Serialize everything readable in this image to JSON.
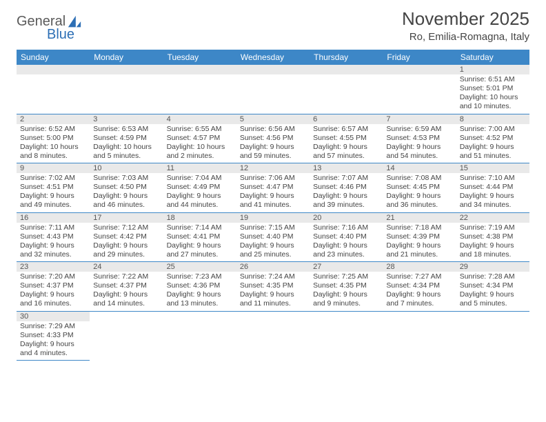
{
  "logo": {
    "general": "General",
    "blue": "Blue"
  },
  "title": "November 2025",
  "location": "Ro, Emilia-Romagna, Italy",
  "colors": {
    "header_bg": "#3d87c7",
    "header_text": "#ffffff",
    "daynum_bg": "#e9e9e9",
    "row_divider": "#3d87c7",
    "body_text": "#444444"
  },
  "day_names": [
    "Sunday",
    "Monday",
    "Tuesday",
    "Wednesday",
    "Thursday",
    "Friday",
    "Saturday"
  ],
  "cells": [
    {
      "blank": true
    },
    {
      "blank": true
    },
    {
      "blank": true
    },
    {
      "blank": true
    },
    {
      "blank": true
    },
    {
      "blank": true
    },
    {
      "day": "1",
      "sunrise": "Sunrise: 6:51 AM",
      "sunset": "Sunset: 5:01 PM",
      "daylight1": "Daylight: 10 hours",
      "daylight2": "and 10 minutes."
    },
    {
      "day": "2",
      "sunrise": "Sunrise: 6:52 AM",
      "sunset": "Sunset: 5:00 PM",
      "daylight1": "Daylight: 10 hours",
      "daylight2": "and 8 minutes."
    },
    {
      "day": "3",
      "sunrise": "Sunrise: 6:53 AM",
      "sunset": "Sunset: 4:59 PM",
      "daylight1": "Daylight: 10 hours",
      "daylight2": "and 5 minutes."
    },
    {
      "day": "4",
      "sunrise": "Sunrise: 6:55 AM",
      "sunset": "Sunset: 4:57 PM",
      "daylight1": "Daylight: 10 hours",
      "daylight2": "and 2 minutes."
    },
    {
      "day": "5",
      "sunrise": "Sunrise: 6:56 AM",
      "sunset": "Sunset: 4:56 PM",
      "daylight1": "Daylight: 9 hours",
      "daylight2": "and 59 minutes."
    },
    {
      "day": "6",
      "sunrise": "Sunrise: 6:57 AM",
      "sunset": "Sunset: 4:55 PM",
      "daylight1": "Daylight: 9 hours",
      "daylight2": "and 57 minutes."
    },
    {
      "day": "7",
      "sunrise": "Sunrise: 6:59 AM",
      "sunset": "Sunset: 4:53 PM",
      "daylight1": "Daylight: 9 hours",
      "daylight2": "and 54 minutes."
    },
    {
      "day": "8",
      "sunrise": "Sunrise: 7:00 AM",
      "sunset": "Sunset: 4:52 PM",
      "daylight1": "Daylight: 9 hours",
      "daylight2": "and 51 minutes."
    },
    {
      "day": "9",
      "sunrise": "Sunrise: 7:02 AM",
      "sunset": "Sunset: 4:51 PM",
      "daylight1": "Daylight: 9 hours",
      "daylight2": "and 49 minutes."
    },
    {
      "day": "10",
      "sunrise": "Sunrise: 7:03 AM",
      "sunset": "Sunset: 4:50 PM",
      "daylight1": "Daylight: 9 hours",
      "daylight2": "and 46 minutes."
    },
    {
      "day": "11",
      "sunrise": "Sunrise: 7:04 AM",
      "sunset": "Sunset: 4:49 PM",
      "daylight1": "Daylight: 9 hours",
      "daylight2": "and 44 minutes."
    },
    {
      "day": "12",
      "sunrise": "Sunrise: 7:06 AM",
      "sunset": "Sunset: 4:47 PM",
      "daylight1": "Daylight: 9 hours",
      "daylight2": "and 41 minutes."
    },
    {
      "day": "13",
      "sunrise": "Sunrise: 7:07 AM",
      "sunset": "Sunset: 4:46 PM",
      "daylight1": "Daylight: 9 hours",
      "daylight2": "and 39 minutes."
    },
    {
      "day": "14",
      "sunrise": "Sunrise: 7:08 AM",
      "sunset": "Sunset: 4:45 PM",
      "daylight1": "Daylight: 9 hours",
      "daylight2": "and 36 minutes."
    },
    {
      "day": "15",
      "sunrise": "Sunrise: 7:10 AM",
      "sunset": "Sunset: 4:44 PM",
      "daylight1": "Daylight: 9 hours",
      "daylight2": "and 34 minutes."
    },
    {
      "day": "16",
      "sunrise": "Sunrise: 7:11 AM",
      "sunset": "Sunset: 4:43 PM",
      "daylight1": "Daylight: 9 hours",
      "daylight2": "and 32 minutes."
    },
    {
      "day": "17",
      "sunrise": "Sunrise: 7:12 AM",
      "sunset": "Sunset: 4:42 PM",
      "daylight1": "Daylight: 9 hours",
      "daylight2": "and 29 minutes."
    },
    {
      "day": "18",
      "sunrise": "Sunrise: 7:14 AM",
      "sunset": "Sunset: 4:41 PM",
      "daylight1": "Daylight: 9 hours",
      "daylight2": "and 27 minutes."
    },
    {
      "day": "19",
      "sunrise": "Sunrise: 7:15 AM",
      "sunset": "Sunset: 4:40 PM",
      "daylight1": "Daylight: 9 hours",
      "daylight2": "and 25 minutes."
    },
    {
      "day": "20",
      "sunrise": "Sunrise: 7:16 AM",
      "sunset": "Sunset: 4:40 PM",
      "daylight1": "Daylight: 9 hours",
      "daylight2": "and 23 minutes."
    },
    {
      "day": "21",
      "sunrise": "Sunrise: 7:18 AM",
      "sunset": "Sunset: 4:39 PM",
      "daylight1": "Daylight: 9 hours",
      "daylight2": "and 21 minutes."
    },
    {
      "day": "22",
      "sunrise": "Sunrise: 7:19 AM",
      "sunset": "Sunset: 4:38 PM",
      "daylight1": "Daylight: 9 hours",
      "daylight2": "and 18 minutes."
    },
    {
      "day": "23",
      "sunrise": "Sunrise: 7:20 AM",
      "sunset": "Sunset: 4:37 PM",
      "daylight1": "Daylight: 9 hours",
      "daylight2": "and 16 minutes."
    },
    {
      "day": "24",
      "sunrise": "Sunrise: 7:22 AM",
      "sunset": "Sunset: 4:37 PM",
      "daylight1": "Daylight: 9 hours",
      "daylight2": "and 14 minutes."
    },
    {
      "day": "25",
      "sunrise": "Sunrise: 7:23 AM",
      "sunset": "Sunset: 4:36 PM",
      "daylight1": "Daylight: 9 hours",
      "daylight2": "and 13 minutes."
    },
    {
      "day": "26",
      "sunrise": "Sunrise: 7:24 AM",
      "sunset": "Sunset: 4:35 PM",
      "daylight1": "Daylight: 9 hours",
      "daylight2": "and 11 minutes."
    },
    {
      "day": "27",
      "sunrise": "Sunrise: 7:25 AM",
      "sunset": "Sunset: 4:35 PM",
      "daylight1": "Daylight: 9 hours",
      "daylight2": "and 9 minutes."
    },
    {
      "day": "28",
      "sunrise": "Sunrise: 7:27 AM",
      "sunset": "Sunset: 4:34 PM",
      "daylight1": "Daylight: 9 hours",
      "daylight2": "and 7 minutes."
    },
    {
      "day": "29",
      "sunrise": "Sunrise: 7:28 AM",
      "sunset": "Sunset: 4:34 PM",
      "daylight1": "Daylight: 9 hours",
      "daylight2": "and 5 minutes."
    },
    {
      "day": "30",
      "sunrise": "Sunrise: 7:29 AM",
      "sunset": "Sunset: 4:33 PM",
      "daylight1": "Daylight: 9 hours",
      "daylight2": "and 4 minutes."
    },
    {
      "trailing_blank": true
    },
    {
      "trailing_blank": true
    },
    {
      "trailing_blank": true
    },
    {
      "trailing_blank": true
    },
    {
      "trailing_blank": true
    },
    {
      "trailing_blank": true
    }
  ]
}
